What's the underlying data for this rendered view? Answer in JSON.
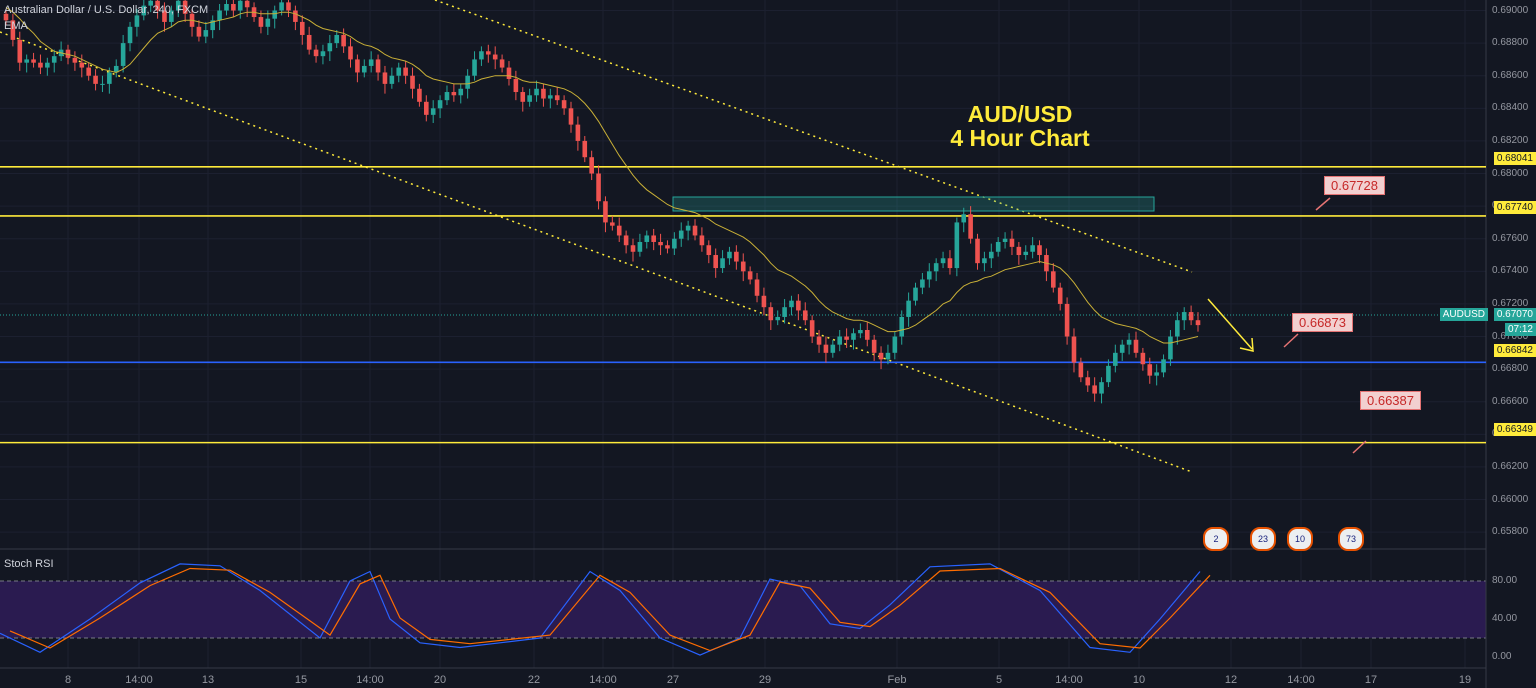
{
  "header": {
    "symbol_line": "Australian Dollar / U.S. Dollar, 240, FXCM",
    "ema_label": "EMA"
  },
  "annotation": {
    "line1": "AUD/USD",
    "line2": "4 Hour Chart"
  },
  "targets": [
    "0.67728",
    "0.66873",
    "0.66387"
  ],
  "price_tags": {
    "r1": "0.68041",
    "r2": "0.67740",
    "symbol": "AUDUSD",
    "current": "0.67070",
    "countdown": "07:12",
    "s1": "0.66842",
    "s2": "0.66349"
  },
  "rsi": {
    "label": "Stoch RSI",
    "ticks": [
      "80.00",
      "40.00",
      "0.00"
    ]
  },
  "events": [
    "2",
    "23",
    "10",
    "73"
  ],
  "colors": {
    "background": "#131722",
    "up": "#26a69a",
    "down": "#ef5350",
    "level": "#ffeb3b",
    "support": "#2962ff",
    "ema": "#c9b037",
    "rsi_k": "#2962ff",
    "rsi_d": "#ff6d00",
    "rsi_band": "#2a1b50"
  },
  "chart_data": {
    "type": "candlestick",
    "y_ticks": [
      "0.69000",
      "0.68800",
      "0.68600",
      "0.68400",
      "0.68200",
      "0.68000",
      "0.67800",
      "0.67600",
      "0.67400",
      "0.67200",
      "0.67000",
      "0.66800",
      "0.66600",
      "0.66400",
      "0.66200",
      "0.66000",
      "0.65800"
    ],
    "ylim": [
      0.6573,
      0.6904
    ],
    "x_ticks": [
      "8",
      "14:00",
      "13",
      "15",
      "14:00",
      "20",
      "22",
      "14:00",
      "27",
      "29",
      "Feb",
      "5",
      "14:00",
      "10",
      "12",
      "14:00",
      "17",
      "19"
    ],
    "horizontal_levels": [
      0.68041,
      0.6774,
      0.66842,
      0.66349
    ],
    "current_price": 0.6707,
    "closes": [
      0.6894,
      0.6882,
      0.6868,
      0.687,
      0.6868,
      0.6865,
      0.6868,
      0.6872,
      0.6876,
      0.6871,
      0.6868,
      0.6865,
      0.686,
      0.6855,
      0.6855,
      0.6862,
      0.6866,
      0.688,
      0.689,
      0.6897,
      0.6903,
      0.6906,
      0.69,
      0.6893,
      0.69,
      0.6906,
      0.6898,
      0.689,
      0.6884,
      0.6888,
      0.6894,
      0.69,
      0.6904,
      0.69,
      0.6906,
      0.6902,
      0.6896,
      0.689,
      0.6895,
      0.69,
      0.6905,
      0.69,
      0.6893,
      0.6885,
      0.6876,
      0.6872,
      0.6875,
      0.688,
      0.6885,
      0.6878,
      0.687,
      0.6862,
      0.6866,
      0.687,
      0.6862,
      0.6855,
      0.686,
      0.6865,
      0.686,
      0.6852,
      0.6844,
      0.6836,
      0.684,
      0.6845,
      0.685,
      0.6848,
      0.6852,
      0.686,
      0.687,
      0.6875,
      0.6873,
      0.687,
      0.6865,
      0.6858,
      0.685,
      0.6844,
      0.6848,
      0.6852,
      0.6846,
      0.6848,
      0.6845,
      0.684,
      0.683,
      0.682,
      0.681,
      0.68,
      0.6783,
      0.677,
      0.6768,
      0.6762,
      0.6756,
      0.6752,
      0.6758,
      0.6762,
      0.6758,
      0.6756,
      0.6754,
      0.676,
      0.6765,
      0.6768,
      0.6762,
      0.6756,
      0.675,
      0.6742,
      0.6748,
      0.6752,
      0.6746,
      0.674,
      0.6735,
      0.6725,
      0.6718,
      0.671,
      0.6712,
      0.6718,
      0.6722,
      0.6716,
      0.671,
      0.67,
      0.6695,
      0.669,
      0.6695,
      0.67,
      0.6698,
      0.6702,
      0.6704,
      0.6698,
      0.669,
      0.6686,
      0.669,
      0.67,
      0.6712,
      0.6722,
      0.673,
      0.6735,
      0.674,
      0.6745,
      0.6748,
      0.6742,
      0.677,
      0.6775,
      0.676,
      0.6745,
      0.6748,
      0.6752,
      0.6758,
      0.676,
      0.6755,
      0.675,
      0.6752,
      0.6756,
      0.675,
      0.674,
      0.673,
      0.672,
      0.67,
      0.6684,
      0.6675,
      0.667,
      0.6665,
      0.6672,
      0.6682,
      0.669,
      0.6695,
      0.6698,
      0.669,
      0.6683,
      0.6676,
      0.6678,
      0.6686,
      0.67,
      0.671,
      0.6715,
      0.671,
      0.6707
    ],
    "ema": [
      0.6902,
      0.6899,
      0.6895,
      0.689,
      0.6886,
      0.6881,
      0.6878,
      0.6875,
      0.6874,
      0.6873,
      0.6872,
      0.687,
      0.6868,
      0.6866,
      0.6864,
      0.6863,
      0.6862,
      0.6864,
      0.6867,
      0.6872,
      0.6877,
      0.6882,
      0.6886,
      0.6888,
      0.689,
      0.6893,
      0.6894,
      0.6894,
      0.6893,
      0.6892,
      0.6893,
      0.6894,
      0.6895,
      0.6896,
      0.6898,
      0.6899,
      0.6899,
      0.6898,
      0.6898,
      0.6898,
      0.6899,
      0.6899,
      0.6898,
      0.6896,
      0.6894,
      0.6891,
      0.6889,
      0.6888,
      0.6887,
      0.6886,
      0.6884,
      0.6881,
      0.6879,
      0.6878,
      0.6876,
      0.6873,
      0.6871,
      0.687,
      0.6869,
      0.6867,
      0.6864,
      0.686,
      0.6858,
      0.6857,
      0.6856,
      0.6855,
      0.6855,
      0.6855,
      0.6856,
      0.6858,
      0.6859,
      0.686,
      0.686,
      0.686,
      0.6859,
      0.6857,
      0.6856,
      0.6856,
      0.6855,
      0.6854,
      0.6853,
      0.6852,
      0.685,
      0.6847,
      0.6843,
      0.6838,
      0.6832,
      0.6825,
      0.6818,
      0.6811,
      0.6805,
      0.6799,
      0.6794,
      0.679,
      0.6787,
      0.6784,
      0.6781,
      0.6779,
      0.6778,
      0.6777,
      0.6776,
      0.6774,
      0.6772,
      0.6769,
      0.6767,
      0.6765,
      0.6763,
      0.6761,
      0.6758,
      0.6754,
      0.675,
      0.6745,
      0.6741,
      0.6739,
      0.6737,
      0.6734,
      0.6731,
      0.6727,
      0.6722,
      0.6718,
      0.6715,
      0.6713,
      0.6711,
      0.671,
      0.671,
      0.6709,
      0.6707,
      0.6705,
      0.6703,
      0.6703,
      0.6704,
      0.6705,
      0.6707,
      0.671,
      0.6713,
      0.6716,
      0.672,
      0.6722,
      0.6727,
      0.6731,
      0.6733,
      0.6734,
      0.6736,
      0.6737,
      0.6739,
      0.6741,
      0.6742,
      0.6743,
      0.6744,
      0.6745,
      0.6746,
      0.6745,
      0.6744,
      0.6742,
      0.6738,
      0.6733,
      0.6727,
      0.6721,
      0.6716,
      0.6712,
      0.671,
      0.6708,
      0.6707,
      0.6706,
      0.6705,
      0.6703,
      0.67,
      0.6698,
      0.6696,
      0.6696,
      0.6697,
      0.6698,
      0.6699,
      0.67
    ]
  }
}
